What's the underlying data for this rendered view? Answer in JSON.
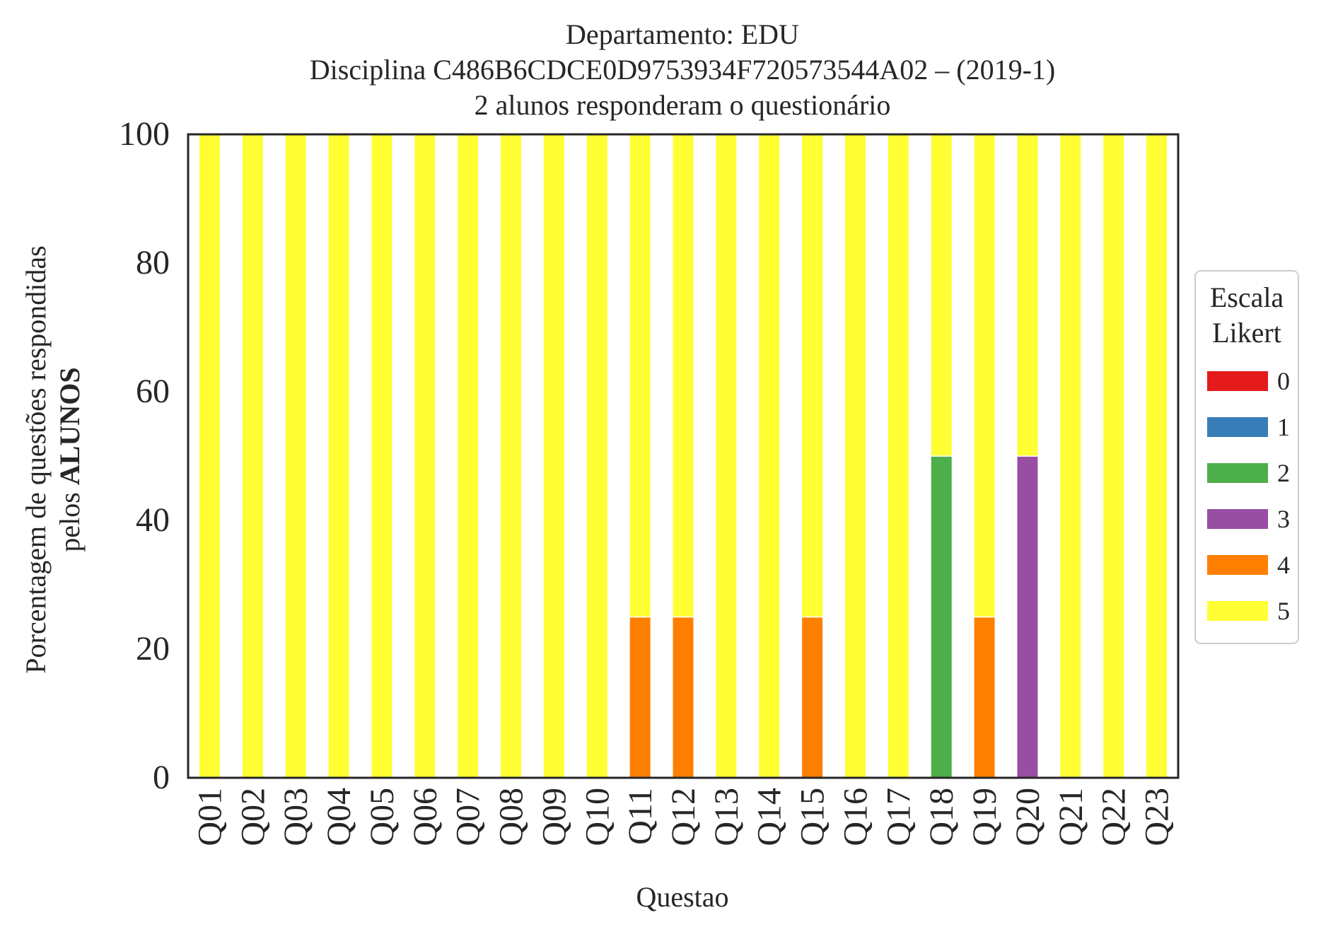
{
  "chart_data": {
    "type": "bar",
    "stacked": true,
    "title_lines": [
      "Departamento: EDU",
      "Disciplina C486B6CDCE0D9753934F720573544A02 – (2019-1)",
      "2 alunos responderam o questionário"
    ],
    "xlabel": "Questao",
    "ylabel_line1": "Porcentagem de questões respondidas",
    "ylabel_line2_prefix": "pelos ",
    "ylabel_line2_bold": "ALUNOS",
    "ylim": [
      0,
      100
    ],
    "yticks": [
      "0",
      "20",
      "40",
      "60",
      "80",
      "100"
    ],
    "grid": false,
    "legend": {
      "title_line1": "Escala",
      "title_line2": "Likert",
      "placement": "right-center-outside"
    },
    "categories": [
      "Q01",
      "Q02",
      "Q03",
      "Q04",
      "Q05",
      "Q06",
      "Q07",
      "Q08",
      "Q09",
      "Q10",
      "Q11",
      "Q12",
      "Q13",
      "Q14",
      "Q15",
      "Q16",
      "Q17",
      "Q18",
      "Q19",
      "Q20",
      "Q21",
      "Q22",
      "Q23"
    ],
    "series": [
      {
        "name": "0",
        "color": "#e41a1c",
        "values": [
          0,
          0,
          0,
          0,
          0,
          0,
          0,
          0,
          0,
          0,
          0,
          0,
          0,
          0,
          0,
          0,
          0,
          0,
          0,
          0,
          0,
          0,
          0
        ]
      },
      {
        "name": "1",
        "color": "#377eb8",
        "values": [
          0,
          0,
          0,
          0,
          0,
          0,
          0,
          0,
          0,
          0,
          0,
          0,
          0,
          0,
          0,
          0,
          0,
          0,
          0,
          0,
          0,
          0,
          0
        ]
      },
      {
        "name": "2",
        "color": "#4daf4a",
        "values": [
          0,
          0,
          0,
          0,
          0,
          0,
          0,
          0,
          0,
          0,
          0,
          0,
          0,
          0,
          0,
          0,
          0,
          50,
          0,
          0,
          0,
          0,
          0
        ]
      },
      {
        "name": "3",
        "color": "#984ea3",
        "values": [
          0,
          0,
          0,
          0,
          0,
          0,
          0,
          0,
          0,
          0,
          0,
          0,
          0,
          0,
          0,
          0,
          0,
          0,
          0,
          50,
          0,
          0,
          0
        ]
      },
      {
        "name": "4",
        "color": "#ff7f00",
        "values": [
          0,
          0,
          0,
          0,
          0,
          0,
          0,
          0,
          0,
          0,
          25,
          25,
          0,
          0,
          25,
          0,
          0,
          0,
          25,
          0,
          0,
          0,
          0
        ]
      },
      {
        "name": "5",
        "color": "#ffff33",
        "values": [
          100,
          100,
          100,
          100,
          100,
          100,
          100,
          100,
          100,
          100,
          75,
          75,
          100,
          100,
          75,
          100,
          100,
          50,
          75,
          50,
          100,
          100,
          100
        ]
      }
    ]
  }
}
